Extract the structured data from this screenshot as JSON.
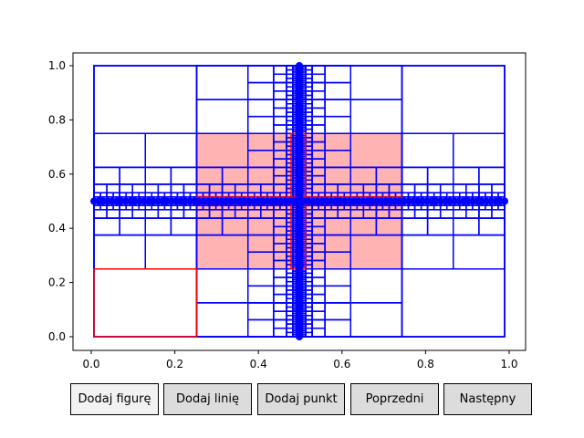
{
  "buttons": {
    "add_shape": "Dodaj figurę",
    "add_line": "Dodaj linię",
    "add_point": "Dodaj punkt",
    "previous": "Poprzedni",
    "next": "Następny"
  },
  "colors": {
    "button_active_bg": "#f2f2f2",
    "button_bg": "#dcdcdc",
    "quadtree": "#0000ff",
    "highlight": "#ff0000",
    "region_fill": "#ffb3b3"
  },
  "chart_data": {
    "type": "scatter",
    "title": "",
    "xlabel": "",
    "ylabel": "",
    "xlim": [
      -0.04,
      1.04
    ],
    "ylim": [
      -0.05,
      1.05
    ],
    "x_ticks": [
      "0.0",
      "0.2",
      "0.4",
      "0.6",
      "0.8",
      "1.0"
    ],
    "y_ticks": [
      "0.0",
      "0.2",
      "0.4",
      "0.6",
      "0.8",
      "1.0"
    ],
    "grid": false,
    "legend": "none",
    "series": [
      {
        "kind": "points",
        "color": "#0000ff",
        "note_horizontal": "points along y = 0.5, x from 0.0 to 1.0",
        "horizontal_points": {
          "y": 0.5,
          "x_from": 0.0,
          "x_to": 1.0
        },
        "vertical_points": {
          "x": 0.5,
          "y_from": 0.0,
          "y_to": 1.0
        }
      }
    ],
    "highlighted_region": {
      "x": [
        0.25,
        0.75
      ],
      "y": [
        0.25,
        0.75
      ],
      "color": "#ffb3b3"
    },
    "highlighted_cell": {
      "x": [
        0.0,
        0.25
      ],
      "y": [
        0.0,
        0.25
      ],
      "color": "#ff0000"
    }
  }
}
